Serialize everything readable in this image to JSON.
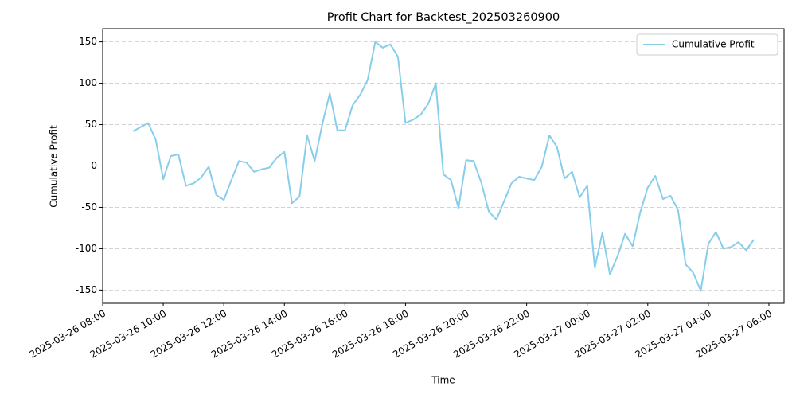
{
  "chart_data": {
    "type": "line",
    "title": "Profit Chart for Backtest_202503260900",
    "xlabel": "Time",
    "ylabel": "Cumulative Profit",
    "x": [
      "2025-03-26 09:00",
      "2025-03-26 09:15",
      "2025-03-26 09:30",
      "2025-03-26 09:45",
      "2025-03-26 10:00",
      "2025-03-26 10:15",
      "2025-03-26 10:30",
      "2025-03-26 10:45",
      "2025-03-26 11:00",
      "2025-03-26 11:15",
      "2025-03-26 11:30",
      "2025-03-26 11:45",
      "2025-03-26 12:00",
      "2025-03-26 12:15",
      "2025-03-26 12:30",
      "2025-03-26 12:45",
      "2025-03-26 13:00",
      "2025-03-26 13:15",
      "2025-03-26 13:30",
      "2025-03-26 13:45",
      "2025-03-26 14:00",
      "2025-03-26 14:15",
      "2025-03-26 14:30",
      "2025-03-26 14:45",
      "2025-03-26 15:00",
      "2025-03-26 15:15",
      "2025-03-26 15:30",
      "2025-03-26 15:45",
      "2025-03-26 16:00",
      "2025-03-26 16:15",
      "2025-03-26 16:30",
      "2025-03-26 16:45",
      "2025-03-26 17:00",
      "2025-03-26 17:15",
      "2025-03-26 17:30",
      "2025-03-26 17:45",
      "2025-03-26 18:00",
      "2025-03-26 18:15",
      "2025-03-26 18:30",
      "2025-03-26 18:45",
      "2025-03-26 19:00",
      "2025-03-26 19:15",
      "2025-03-26 19:30",
      "2025-03-26 19:45",
      "2025-03-26 20:00",
      "2025-03-26 20:15",
      "2025-03-26 20:30",
      "2025-03-26 20:45",
      "2025-03-26 21:00",
      "2025-03-26 21:15",
      "2025-03-26 21:30",
      "2025-03-26 21:45",
      "2025-03-26 22:00",
      "2025-03-26 22:15",
      "2025-03-26 22:30",
      "2025-03-26 22:45",
      "2025-03-26 23:00",
      "2025-03-26 23:15",
      "2025-03-26 23:30",
      "2025-03-26 23:45",
      "2025-03-27 00:00",
      "2025-03-27 00:15",
      "2025-03-27 00:30",
      "2025-03-27 00:45",
      "2025-03-27 01:00",
      "2025-03-27 01:15",
      "2025-03-27 01:30",
      "2025-03-27 01:45",
      "2025-03-27 02:00",
      "2025-03-27 02:15",
      "2025-03-27 02:30",
      "2025-03-27 02:45",
      "2025-03-27 03:00",
      "2025-03-27 03:15",
      "2025-03-27 03:30",
      "2025-03-27 03:45",
      "2025-03-27 04:00",
      "2025-03-27 04:15",
      "2025-03-27 04:30",
      "2025-03-27 04:45",
      "2025-03-27 05:00",
      "2025-03-27 05:15",
      "2025-03-27 05:30"
    ],
    "series": [
      {
        "name": "Cumulative Profit",
        "color": "#87ceeb",
        "values": [
          42,
          47,
          52,
          32,
          -16,
          12,
          14,
          -24,
          -21,
          -14,
          -1,
          -35,
          -41,
          -17,
          6,
          4,
          -7,
          -4,
          -2,
          10,
          17,
          -45,
          -37,
          37,
          6,
          50,
          88,
          43,
          43,
          73,
          86,
          104,
          150,
          143,
          147,
          132,
          52,
          56,
          62,
          75,
          100,
          -10,
          -17,
          -51,
          7,
          6,
          -20,
          -55,
          -65,
          -43,
          -21,
          -13,
          -15,
          -17,
          -1,
          37,
          23,
          -15,
          -7,
          -38,
          -24,
          -123,
          -81,
          -131,
          -109,
          -82,
          -97,
          -56,
          -26,
          -12,
          -40,
          -36,
          -53,
          -119,
          -129,
          -151,
          -94,
          -80,
          -100,
          -98,
          -92,
          -102,
          -89
        ]
      }
    ],
    "xlim": [
      "2025-03-26 08:00",
      "2025-03-27 06:30"
    ],
    "xticks": [
      "2025-03-26 08:00",
      "2025-03-26 10:00",
      "2025-03-26 12:00",
      "2025-03-26 14:00",
      "2025-03-26 16:00",
      "2025-03-26 18:00",
      "2025-03-26 20:00",
      "2025-03-26 22:00",
      "2025-03-27 00:00",
      "2025-03-27 02:00",
      "2025-03-27 04:00",
      "2025-03-27 06:00"
    ],
    "ylim": [
      -166,
      166
    ],
    "yticks": [
      -150,
      -100,
      -50,
      0,
      50,
      100,
      150
    ],
    "grid": "y",
    "legend": "upper right"
  }
}
